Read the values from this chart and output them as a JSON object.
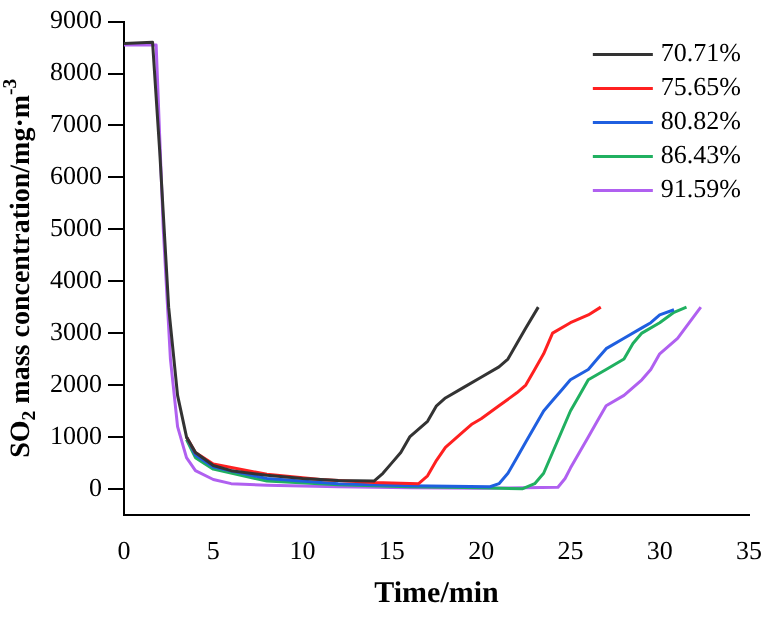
{
  "chart_data": {
    "type": "line",
    "xlabel": "Time/min",
    "ylabel": "SO$_{2}$ mass concentration/mg·m$^{-3}$",
    "xlim": [
      0,
      35
    ],
    "ylim": [
      -500,
      9000
    ],
    "xticks": [
      0,
      5,
      10,
      15,
      20,
      25,
      30,
      35
    ],
    "yticks": [
      0,
      1000,
      2000,
      3000,
      4000,
      5000,
      6000,
      7000,
      8000,
      9000
    ],
    "grid": false,
    "legend": "top right",
    "marker": "none",
    "line_style": "solid",
    "series": [
      {
        "name": "70.71%",
        "color": "#333333",
        "x": [
          0,
          1.6,
          2,
          2.5,
          3,
          3.5,
          4,
          5,
          6,
          8,
          10,
          12,
          14,
          14.5,
          15,
          15.5,
          16,
          17,
          17.5,
          18,
          19,
          20,
          21,
          21.5,
          22,
          22.5,
          23.2
        ],
        "values": [
          8580,
          8600,
          6500,
          3500,
          1800,
          1000,
          700,
          450,
          350,
          260,
          200,
          160,
          150,
          300,
          500,
          700,
          1000,
          1300,
          1600,
          1750,
          1950,
          2150,
          2350,
          2500,
          2800,
          3100,
          3500
        ]
      },
      {
        "name": "75.65%",
        "color": "#ff2020",
        "x": [
          3.5,
          4,
          5,
          8,
          11,
          14,
          16.5,
          17,
          17.5,
          18,
          19,
          19.5,
          20,
          21,
          22,
          22.5,
          23,
          23.5,
          24,
          25,
          26,
          26.7
        ],
        "values": [
          1000,
          700,
          480,
          280,
          180,
          120,
          100,
          250,
          550,
          800,
          1100,
          1250,
          1350,
          1600,
          1850,
          2000,
          2300,
          2600,
          3000,
          3200,
          3350,
          3500
        ]
      },
      {
        "name": "80.82%",
        "color": "#1f5fe0",
        "x": [
          3.5,
          4,
          5,
          8,
          12,
          16,
          20.5,
          21,
          21.5,
          22,
          22.5,
          23,
          23.5,
          24,
          24.5,
          25,
          26,
          26.5,
          27,
          28,
          29,
          29.5,
          30,
          30.8
        ],
        "values": [
          1000,
          650,
          420,
          200,
          100,
          60,
          40,
          100,
          300,
          600,
          900,
          1200,
          1500,
          1700,
          1900,
          2100,
          2300,
          2500,
          2700,
          2900,
          3100,
          3200,
          3350,
          3450
        ]
      },
      {
        "name": "86.43%",
        "color": "#20b060",
        "x": [
          3.5,
          4,
          5,
          8,
          12,
          16,
          20,
          22.3,
          23,
          23.5,
          24,
          24.5,
          25,
          25.5,
          26,
          27,
          27.5,
          28,
          28.5,
          29,
          30,
          30.8,
          31.5
        ],
        "values": [
          950,
          600,
          380,
          150,
          80,
          40,
          20,
          0,
          100,
          300,
          700,
          1100,
          1500,
          1800,
          2100,
          2300,
          2400,
          2500,
          2800,
          3000,
          3200,
          3400,
          3500
        ]
      },
      {
        "name": "91.59%",
        "color": "#b060f0",
        "x": [
          0,
          1.8,
          2.2,
          2.6,
          3,
          3.5,
          4,
          5,
          6,
          8,
          12,
          16,
          20,
          24.3,
          24.7,
          25,
          25.5,
          26,
          26.5,
          27,
          28,
          29,
          29.5,
          30,
          31,
          32.3
        ],
        "values": [
          8550,
          8550,
          5000,
          2500,
          1200,
          600,
          350,
          180,
          100,
          70,
          40,
          20,
          10,
          30,
          200,
          400,
          700,
          1000,
          1300,
          1600,
          1800,
          2100,
          2300,
          2600,
          2900,
          3500
        ]
      }
    ]
  }
}
